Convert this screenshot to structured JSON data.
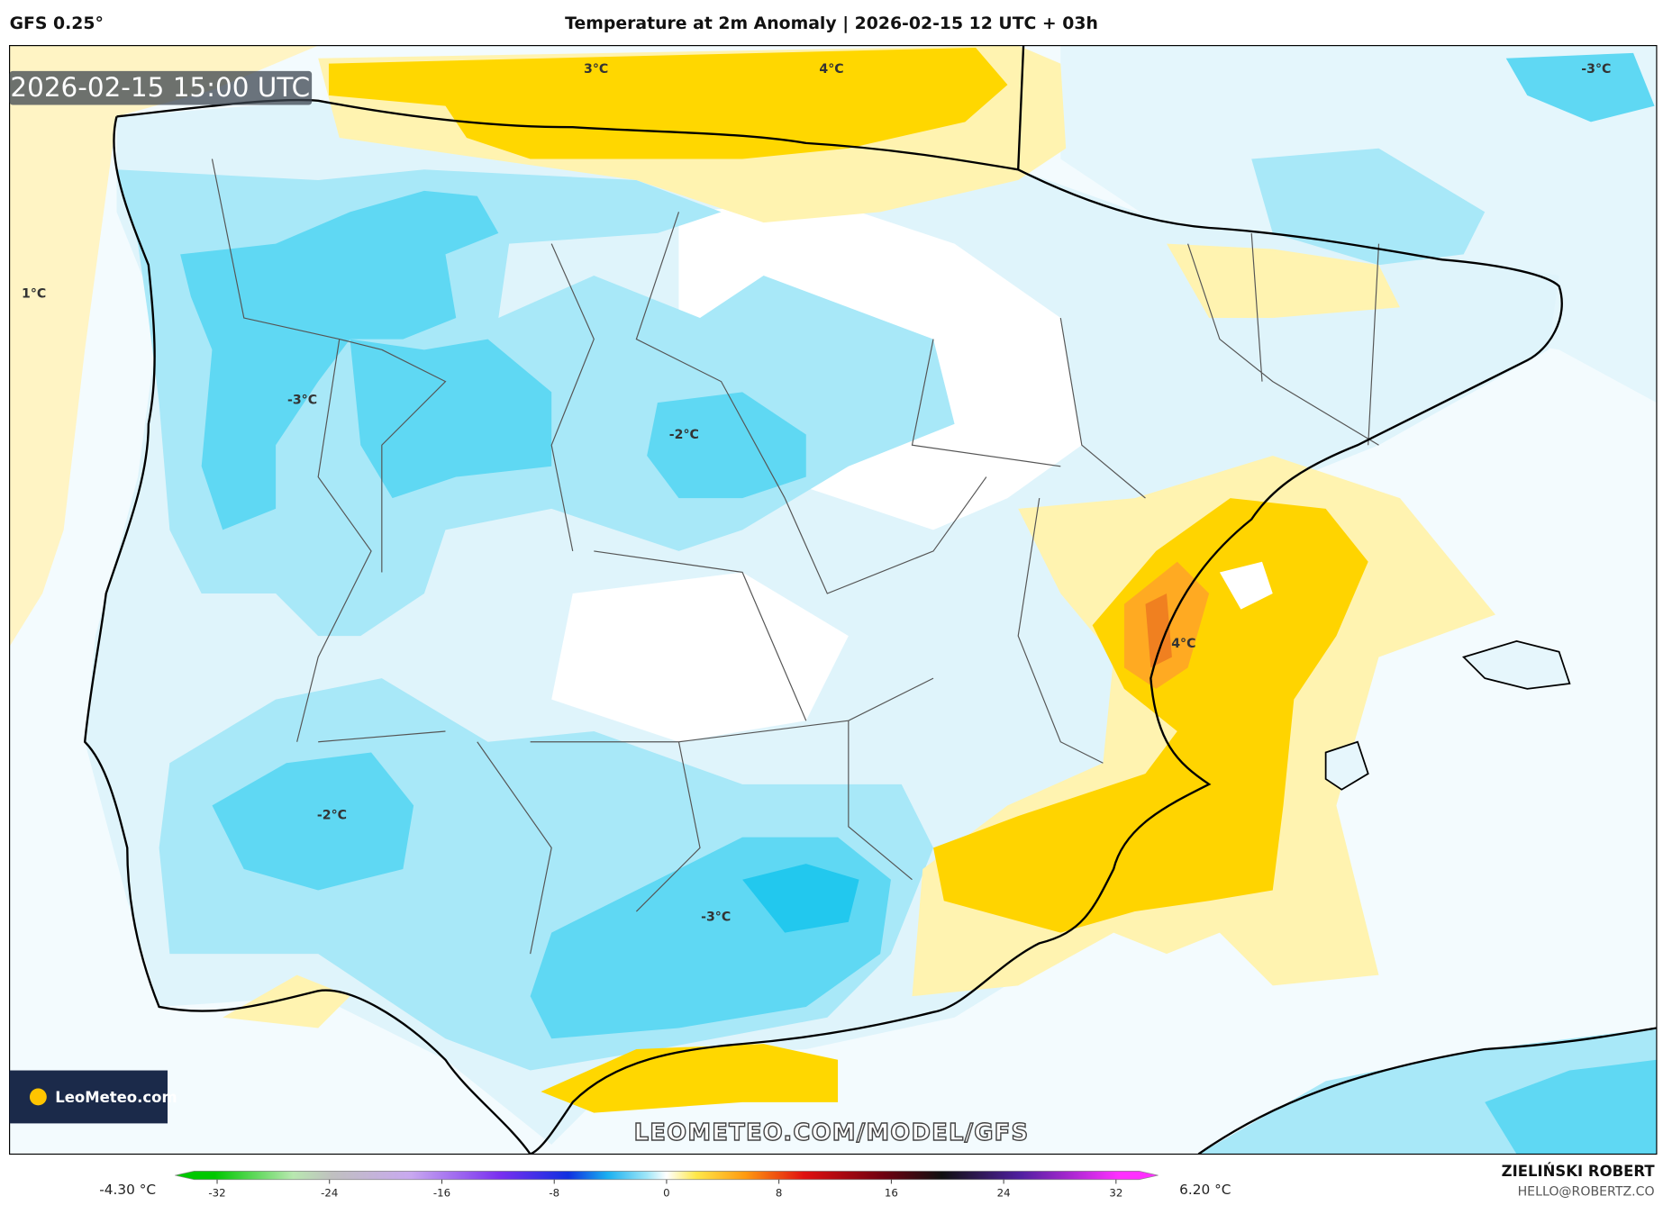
{
  "header": {
    "model": "GFS 0.25°",
    "title": "Temperature at 2m Anomaly | 2026-02-15 12 UTC + 03h"
  },
  "timestamp": "2026-02-15 15:00 UTC",
  "contour_labels": [
    "3°C",
    "4°C",
    "-3°C",
    "1°C",
    "-3°C",
    "-2°C",
    "4°C",
    "-2°C",
    "-3°C"
  ],
  "watermark": "LEOMETEO.COM/MODEL/GFS",
  "logo": "LeoMeteo.com",
  "colorbar": {
    "min_label": "-4.30 °C",
    "max_label": "6.20 °C",
    "lim": [
      -35,
      35
    ],
    "ticks": [
      -32,
      -24,
      -16,
      -8,
      0,
      8,
      16,
      24,
      32
    ]
  },
  "credit": {
    "author": "ZIELIŃSKI ROBERT",
    "email": "HELLO@ROBERTZ.CO"
  }
}
